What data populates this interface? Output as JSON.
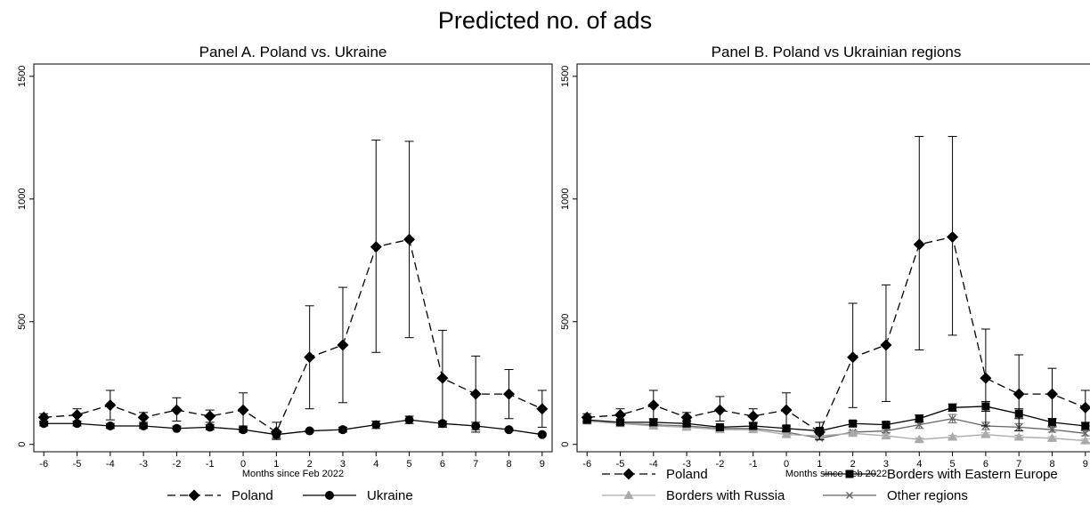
{
  "figure_title": "Predicted no. of ads",
  "chart_data": [
    {
      "type": "line",
      "title": "Panel A. Poland vs. Ukraine",
      "xlabel": "Months since Feb 2022",
      "ylabel": "",
      "x": [
        -6,
        -5,
        -4,
        -3,
        -2,
        -1,
        0,
        1,
        2,
        3,
        4,
        5,
        6,
        7,
        8,
        9
      ],
      "xlim": [
        -6.3,
        9.3
      ],
      "ylim": [
        -30,
        1550
      ],
      "yticks": [
        0,
        500,
        1000,
        1500
      ],
      "grid": false,
      "legend_position": "bottom",
      "series": [
        {
          "name": "Poland",
          "marker": "diamond",
          "dash": "dashed",
          "color": "#000000",
          "values": [
            110,
            120,
            160,
            110,
            140,
            115,
            140,
            50,
            355,
            405,
            805,
            835,
            270,
            205,
            205,
            145
          ],
          "ci_low": [
            90,
            95,
            100,
            90,
            95,
            90,
            75,
            20,
            145,
            170,
            375,
            435,
            70,
            50,
            105,
            70
          ],
          "ci_high": [
            125,
            145,
            220,
            130,
            190,
            140,
            210,
            90,
            565,
            640,
            1240,
            1235,
            465,
            360,
            305,
            220
          ]
        },
        {
          "name": "Ukraine",
          "marker": "circle",
          "dash": "solid",
          "color": "#000000",
          "values": [
            85,
            85,
            75,
            75,
            65,
            70,
            60,
            40,
            55,
            60,
            80,
            100,
            85,
            75,
            60,
            40
          ],
          "ci_low": [
            75,
            75,
            65,
            65,
            60,
            60,
            50,
            25,
            50,
            50,
            65,
            85,
            75,
            60,
            55,
            35
          ],
          "ci_high": [
            95,
            95,
            85,
            85,
            75,
            80,
            70,
            55,
            60,
            70,
            95,
            115,
            95,
            90,
            65,
            45
          ]
        }
      ]
    },
    {
      "type": "line",
      "title": "Panel B. Poland vs Ukrainian regions",
      "xlabel": "Months since Feb 2022",
      "ylabel": "",
      "x": [
        -6,
        -5,
        -4,
        -3,
        -2,
        -1,
        0,
        1,
        2,
        3,
        4,
        5,
        6,
        7,
        8,
        9
      ],
      "xlim": [
        -6.3,
        9.3
      ],
      "ylim": [
        -30,
        1550
      ],
      "yticks": [
        0,
        500,
        1000,
        1500
      ],
      "grid": false,
      "legend_position": "bottom",
      "series": [
        {
          "name": "Poland",
          "marker": "diamond",
          "dash": "dashed",
          "color": "#000000",
          "values": [
            110,
            120,
            160,
            110,
            140,
            115,
            140,
            50,
            355,
            405,
            815,
            845,
            270,
            205,
            205,
            150
          ],
          "ci_low": [
            95,
            100,
            105,
            95,
            95,
            90,
            75,
            20,
            150,
            175,
            385,
            445,
            75,
            55,
            105,
            75
          ],
          "ci_high": [
            125,
            145,
            220,
            130,
            195,
            145,
            210,
            90,
            575,
            650,
            1255,
            1255,
            470,
            365,
            310,
            220
          ]
        },
        {
          "name": "Borders with Eastern Europe",
          "marker": "square",
          "dash": "solid",
          "color": "#000000",
          "values": [
            100,
            90,
            90,
            85,
            70,
            75,
            65,
            55,
            85,
            80,
            105,
            150,
            155,
            125,
            90,
            75
          ],
          "ci_low": [
            90,
            80,
            80,
            75,
            65,
            65,
            55,
            45,
            75,
            70,
            90,
            135,
            135,
            105,
            75,
            60
          ],
          "ci_high": [
            110,
            100,
            100,
            95,
            75,
            85,
            75,
            65,
            95,
            90,
            120,
            165,
            175,
            145,
            105,
            90
          ]
        },
        {
          "name": "Borders with Russia",
          "marker": "triangle",
          "dash": "solid",
          "color": "#aaaaaa",
          "values": [
            95,
            85,
            75,
            70,
            60,
            60,
            40,
            35,
            45,
            35,
            20,
            30,
            40,
            30,
            25,
            15
          ],
          "ci_low": [
            88,
            78,
            68,
            63,
            53,
            53,
            33,
            28,
            38,
            28,
            13,
            23,
            33,
            23,
            18,
            8
          ],
          "ci_high": [
            102,
            92,
            82,
            77,
            67,
            67,
            47,
            42,
            52,
            42,
            27,
            37,
            47,
            37,
            32,
            22
          ]
        },
        {
          "name": "Other regions",
          "marker": "cross",
          "dash": "solid",
          "color": "#666666",
          "values": [
            95,
            85,
            80,
            75,
            65,
            65,
            50,
            25,
            50,
            55,
            80,
            105,
            75,
            70,
            60,
            45
          ],
          "ci_low": [
            88,
            78,
            73,
            68,
            58,
            58,
            43,
            18,
            43,
            48,
            65,
            88,
            60,
            55,
            50,
            35
          ],
          "ci_high": [
            102,
            92,
            87,
            82,
            72,
            72,
            57,
            32,
            57,
            62,
            95,
            122,
            90,
            85,
            70,
            55
          ]
        }
      ]
    }
  ]
}
